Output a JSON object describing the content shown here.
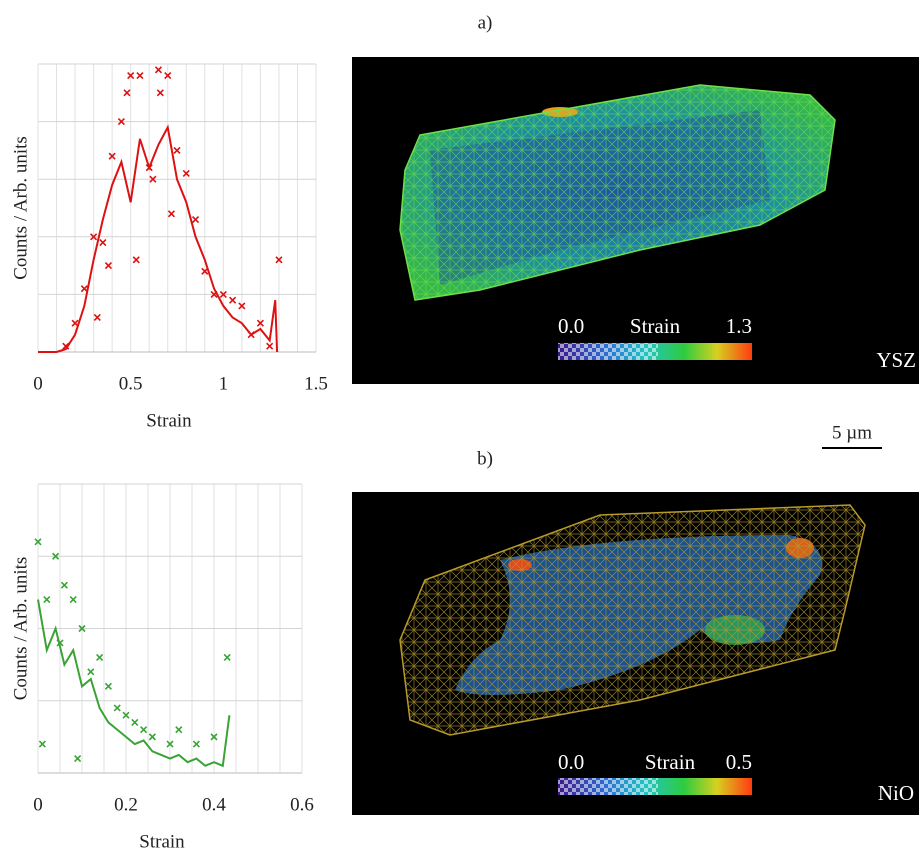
{
  "chart_data": [
    {
      "type": "line",
      "xlabel": "Strain",
      "ylabel": "Counts / Arb. units",
      "xlim": [
        0,
        1.5
      ],
      "xticks": [
        0,
        0.5,
        1,
        1.5
      ],
      "ylim": [
        0,
        5
      ],
      "ygrid": [
        1,
        2,
        3,
        4,
        5
      ],
      "xgrid": [
        0.1,
        0.2,
        0.3,
        0.4,
        0.5,
        0.6,
        0.7,
        0.8,
        0.9,
        1,
        1.1,
        1.2,
        1.3,
        1.4,
        1.5
      ],
      "series": [
        {
          "style": "line",
          "color": "#dd1111",
          "x": [
            0,
            0.05,
            0.1,
            0.15,
            0.2,
            0.25,
            0.3,
            0.35,
            0.4,
            0.45,
            0.5,
            0.55,
            0.6,
            0.65,
            0.7,
            0.75,
            0.8,
            0.85,
            0.9,
            0.95,
            1,
            1.05,
            1.1,
            1.15,
            1.2,
            1.25,
            1.28,
            1.29
          ],
          "values": [
            0,
            0,
            0,
            0.05,
            0.3,
            0.8,
            1.6,
            2.3,
            2.9,
            3.3,
            2.6,
            3.7,
            3.2,
            3.6,
            3.9,
            3.0,
            2.6,
            2.0,
            1.6,
            1.1,
            0.8,
            0.6,
            0.5,
            0.3,
            0.4,
            0.2,
            0.9,
            0
          ]
        },
        {
          "style": "markers",
          "color": "#dd1111",
          "x": [
            0.15,
            0.2,
            0.25,
            0.3,
            0.35,
            0.4,
            0.45,
            0.5,
            0.55,
            0.6,
            0.65,
            0.7,
            0.75,
            0.8,
            0.85,
            0.9,
            0.95,
            1,
            1.05,
            1.1,
            1.15,
            1.2,
            1.25,
            1.3,
            0.48,
            0.53,
            0.62,
            0.66,
            0.38,
            0.72,
            0.32
          ],
          "values": [
            0.1,
            0.5,
            1.1,
            2.0,
            1.9,
            3.4,
            4.0,
            4.8,
            4.8,
            3.2,
            4.9,
            4.8,
            3.5,
            3.1,
            2.3,
            1.4,
            1.0,
            1.0,
            0.9,
            0.8,
            0.3,
            0.5,
            0.1,
            1.6,
            4.5,
            1.6,
            3.0,
            4.5,
            1.5,
            2.4,
            0.6
          ]
        }
      ]
    },
    {
      "type": "line",
      "xlabel": "Strain",
      "ylabel": "Counts / Arb. units",
      "xlim": [
        0,
        0.6
      ],
      "xticks": [
        0,
        0.2,
        0.4,
        0.6
      ],
      "ylim": [
        0,
        4
      ],
      "ygrid": [
        1,
        2,
        3,
        4
      ],
      "xgrid": [
        0.05,
        0.1,
        0.15,
        0.2,
        0.25,
        0.3,
        0.35,
        0.4,
        0.45,
        0.5,
        0.55,
        0.6
      ],
      "series": [
        {
          "style": "line",
          "color": "#3aa336",
          "x": [
            0,
            0.02,
            0.04,
            0.06,
            0.08,
            0.1,
            0.12,
            0.14,
            0.16,
            0.18,
            0.2,
            0.22,
            0.24,
            0.26,
            0.28,
            0.3,
            0.32,
            0.34,
            0.36,
            0.38,
            0.4,
            0.42,
            0.435
          ],
          "values": [
            2.4,
            1.7,
            2.0,
            1.5,
            1.7,
            1.2,
            1.3,
            0.9,
            0.7,
            0.6,
            0.5,
            0.4,
            0.45,
            0.3,
            0.25,
            0.2,
            0.25,
            0.15,
            0.2,
            0.1,
            0.15,
            0.1,
            0.8
          ]
        },
        {
          "style": "markers",
          "color": "#3aa336",
          "x": [
            0,
            0.02,
            0.04,
            0.06,
            0.08,
            0.1,
            0.12,
            0.14,
            0.16,
            0.18,
            0.2,
            0.22,
            0.24,
            0.26,
            0.3,
            0.32,
            0.36,
            0.4,
            0.43,
            0.01,
            0.05,
            0.09
          ],
          "values": [
            3.2,
            2.4,
            3.0,
            2.6,
            2.4,
            2.0,
            1.4,
            1.6,
            1.2,
            0.9,
            0.8,
            0.7,
            0.6,
            0.5,
            0.4,
            0.6,
            0.4,
            0.5,
            1.6,
            0.4,
            1.8,
            0.2
          ]
        }
      ]
    }
  ],
  "panels": [
    {
      "label": "a)",
      "material": "YSZ",
      "colorbar": {
        "min": "0.0",
        "title": "Strain",
        "max": "1.3"
      }
    },
    {
      "label": "b)",
      "material": "NiO",
      "colorbar": {
        "min": "0.0",
        "title": "Strain",
        "max": "0.5"
      }
    }
  ],
  "scale_bar": "5 µm"
}
